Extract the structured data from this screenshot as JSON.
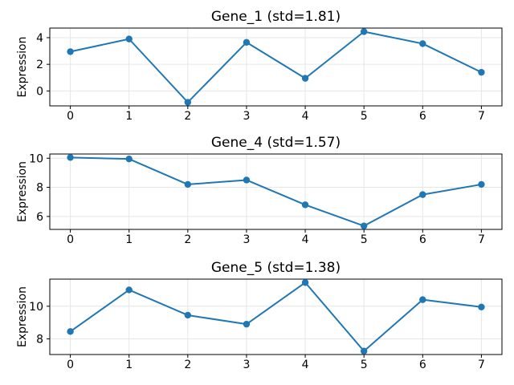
{
  "figure": {
    "background": "#ffffff",
    "accent_line_color": "#1f77b4",
    "grid_color": "#e6e6e6",
    "spine_color": "#000000",
    "text_color": "#000000"
  },
  "chart_data": [
    {
      "type": "line",
      "title": "Gene_1 (std=1.81)",
      "xlabel": "",
      "ylabel": "Expression",
      "x": [
        0,
        1,
        2,
        3,
        4,
        5,
        6,
        7
      ],
      "values": [
        2.95,
        3.9,
        -0.85,
        3.65,
        0.95,
        4.45,
        3.55,
        1.4
      ],
      "xticks": [
        0,
        1,
        2,
        3,
        4,
        5,
        6,
        7
      ],
      "yticks": [
        0,
        2,
        4
      ],
      "xlim": [
        -0.35,
        7.35
      ],
      "ylim": [
        -1.12,
        4.72
      ],
      "grid": true,
      "marker": "circle",
      "line_color": "#1f77b4",
      "legend": null
    },
    {
      "type": "line",
      "title": "Gene_4 (std=1.57)",
      "xlabel": "",
      "ylabel": "Expression",
      "x": [
        0,
        1,
        2,
        3,
        4,
        5,
        6,
        7
      ],
      "values": [
        10.05,
        9.95,
        8.2,
        8.5,
        6.8,
        5.35,
        7.5,
        8.2
      ],
      "xticks": [
        0,
        1,
        2,
        3,
        4,
        5,
        6,
        7
      ],
      "yticks": [
        6,
        8,
        10
      ],
      "xlim": [
        -0.35,
        7.35
      ],
      "ylim": [
        5.11,
        10.29
      ],
      "grid": true,
      "marker": "circle",
      "line_color": "#1f77b4",
      "legend": null
    },
    {
      "type": "line",
      "title": "Gene_5 (std=1.38)",
      "xlabel": "",
      "ylabel": "Expression",
      "x": [
        0,
        1,
        2,
        3,
        4,
        5,
        6,
        7
      ],
      "values": [
        8.45,
        11.0,
        9.45,
        8.9,
        11.45,
        7.25,
        10.4,
        9.95
      ],
      "xticks": [
        0,
        1,
        2,
        3,
        4,
        5,
        6,
        7
      ],
      "yticks": [
        8,
        10
      ],
      "xlim": [
        -0.35,
        7.35
      ],
      "ylim": [
        7.04,
        11.66
      ],
      "grid": true,
      "marker": "circle",
      "line_color": "#1f77b4",
      "legend": null
    }
  ]
}
